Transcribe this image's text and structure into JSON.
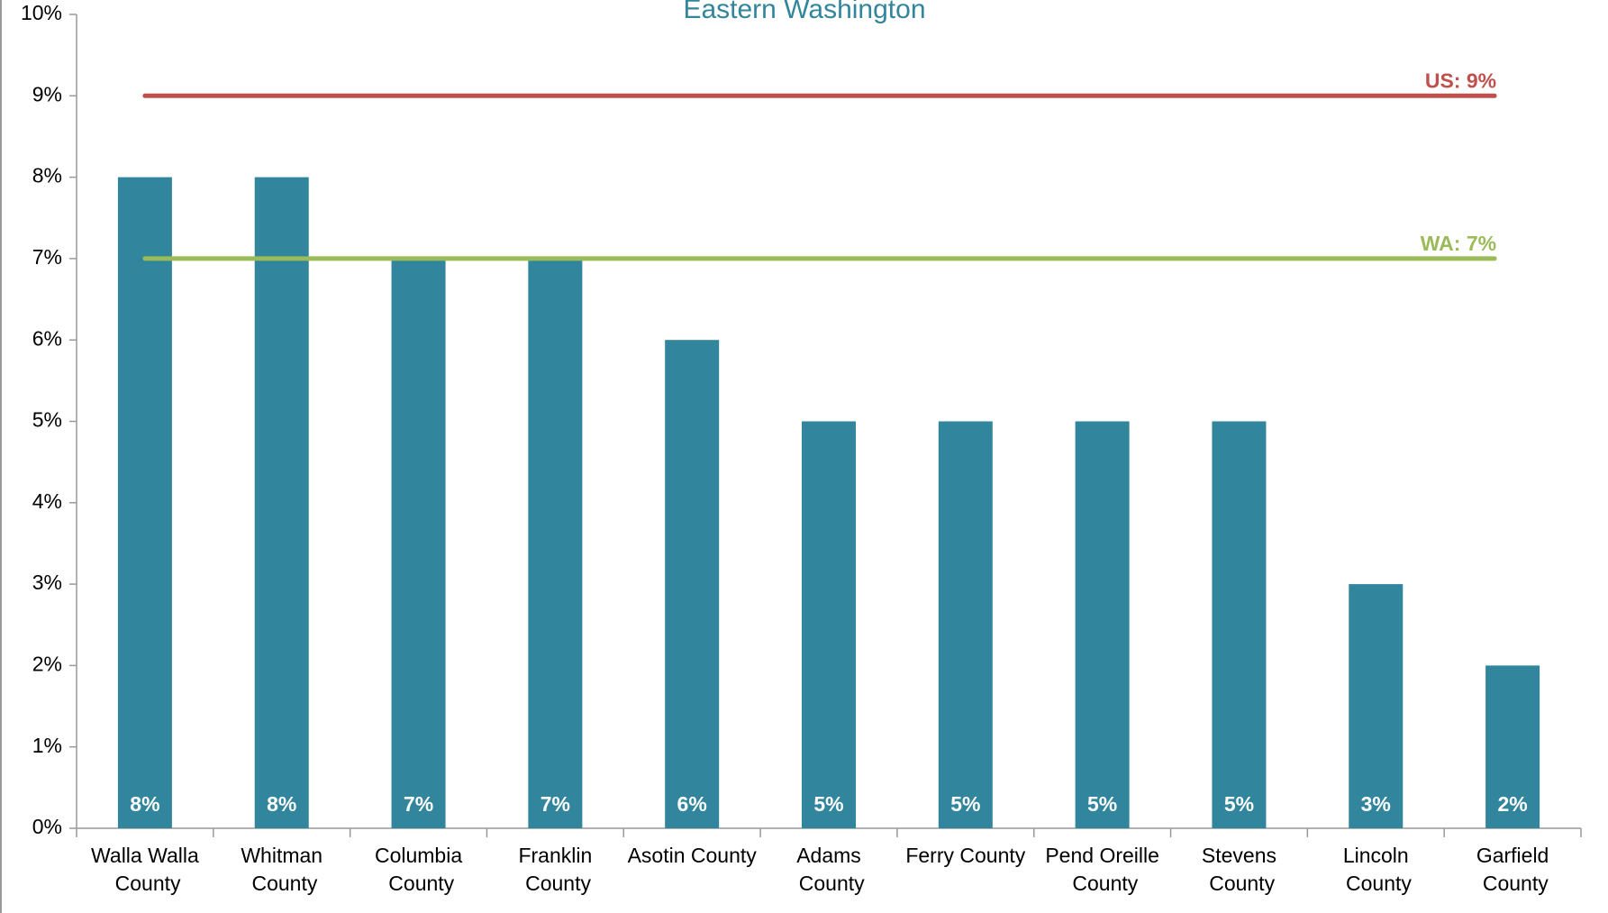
{
  "chart_data": {
    "type": "bar",
    "title": "Eastern Washington",
    "categories": [
      "Walla Walla County",
      "Whitman County",
      "Columbia County",
      "Franklin County",
      "Asotin County",
      "Adams County",
      "Ferry County",
      "Pend Oreille County",
      "Stevens County",
      "Lincoln County",
      "Garfield County"
    ],
    "values": [
      8,
      8,
      7,
      7,
      6,
      5,
      5,
      5,
      5,
      3,
      2
    ],
    "value_labels": [
      "8%",
      "8%",
      "7%",
      "7%",
      "6%",
      "5%",
      "5%",
      "5%",
      "5%",
      "3%",
      "2%"
    ],
    "color": "#31859c",
    "ylim": [
      0,
      10
    ],
    "yticks": [
      {
        "value": 0,
        "label": "0%"
      },
      {
        "value": 1,
        "label": "1%"
      },
      {
        "value": 2,
        "label": "2%"
      },
      {
        "value": 3,
        "label": "3%"
      },
      {
        "value": 4,
        "label": "4%"
      },
      {
        "value": 5,
        "label": "5%"
      },
      {
        "value": 6,
        "label": "6%"
      },
      {
        "value": 7,
        "label": "7%"
      },
      {
        "value": 8,
        "label": "8%"
      },
      {
        "value": 9,
        "label": "9%"
      },
      {
        "value": 10,
        "label": "10%"
      }
    ],
    "reference_lines": [
      {
        "label": "US: 9%",
        "value": 9,
        "color": "#c0504d"
      },
      {
        "label": "WA: 7%",
        "value": 7,
        "color": "#9bbb59"
      }
    ],
    "grid": false
  }
}
